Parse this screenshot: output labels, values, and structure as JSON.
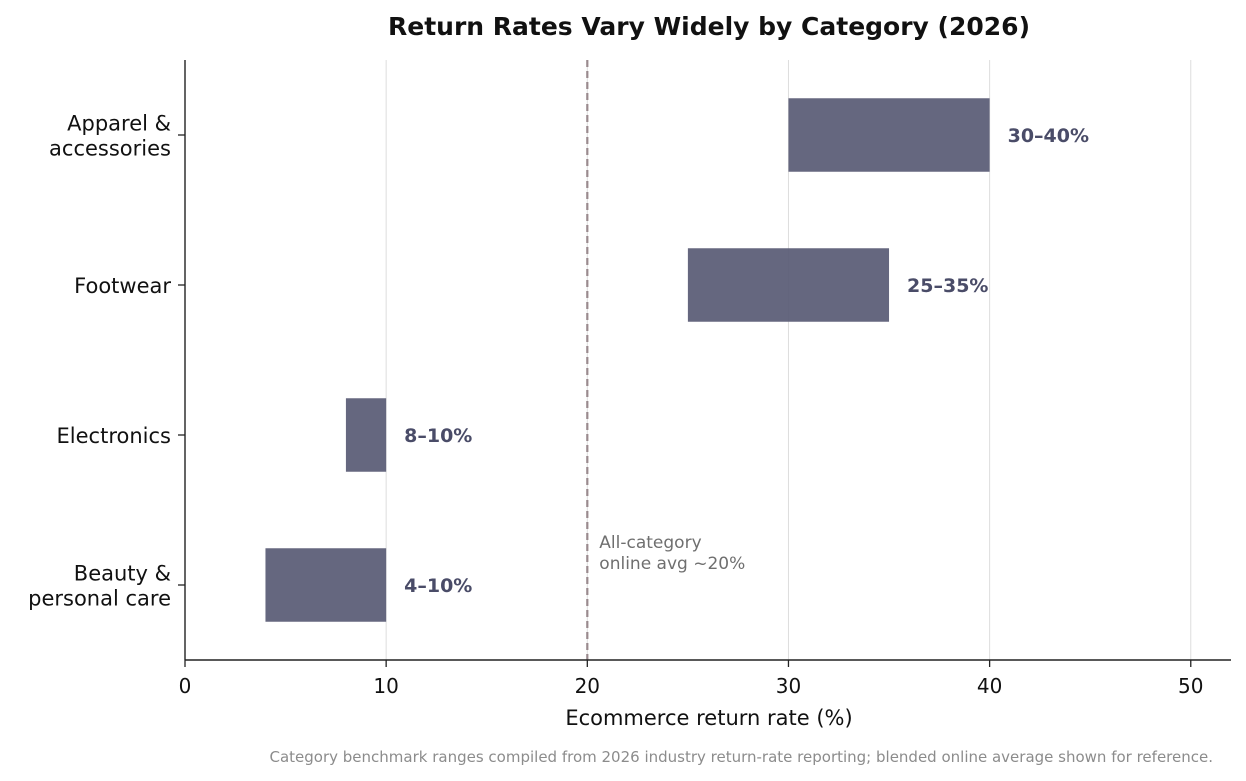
{
  "chart_data": {
    "type": "bar",
    "orientation": "horizontal",
    "style": "floating-range",
    "title": "Return Rates Vary Widely by Category (2026)",
    "xlabel": "Ecommerce return rate (%)",
    "ylabel": "",
    "xlim": [
      0,
      52
    ],
    "xticks": [
      0,
      10,
      20,
      30,
      40,
      50
    ],
    "grid": "vertical",
    "legend": "none",
    "categories": [
      {
        "label_lines": [
          "Apparel &",
          "accessories"
        ],
        "low": 30,
        "high": 40,
        "data_label": "30–40%"
      },
      {
        "label_lines": [
          "Footwear"
        ],
        "low": 25,
        "high": 35,
        "data_label": "25–35%"
      },
      {
        "label_lines": [
          "Electronics"
        ],
        "low": 8,
        "high": 10,
        "data_label": "8–10%"
      },
      {
        "label_lines": [
          "Beauty &",
          "personal care"
        ],
        "low": 4,
        "high": 10,
        "data_label": "4–10%"
      }
    ],
    "reference_line": {
      "value": 20,
      "style": "dashed",
      "label_lines": [
        "All-category",
        "online avg ~20%"
      ]
    },
    "footnote": "Category benchmark ranges compiled from 2026 industry return-rate reporting; blended online average shown for reference.",
    "colors": {
      "bar": "#5b5d77",
      "data_label": "#4a4c68",
      "reference_line": "#9a8a8e",
      "grid": "#dddddd",
      "axis": "#222222"
    }
  }
}
